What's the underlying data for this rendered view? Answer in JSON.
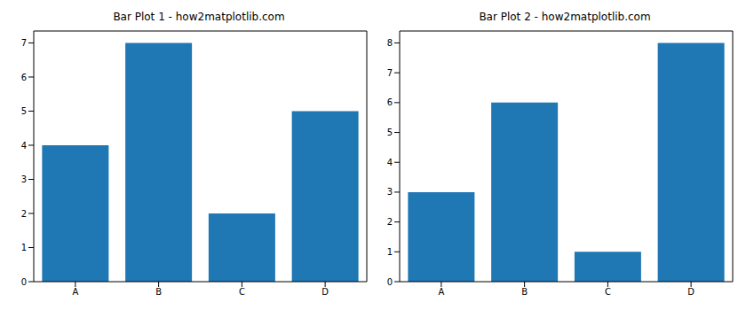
{
  "chart_data": [
    {
      "type": "bar",
      "title": "Bar Plot 1 - how2matplotlib.com",
      "categories": [
        "A",
        "B",
        "C",
        "D"
      ],
      "values": [
        4,
        7,
        2,
        5
      ],
      "color": "#1f77b4",
      "ylim": [
        0,
        7.35
      ],
      "yticks": [
        0,
        1,
        2,
        3,
        4,
        5,
        6,
        7
      ],
      "grid": false
    },
    {
      "type": "bar",
      "title": "Bar Plot 2 - how2matplotlib.com",
      "categories": [
        "A",
        "B",
        "C",
        "D"
      ],
      "values": [
        3,
        6,
        1,
        8
      ],
      "color": "#1f77b4",
      "ylim": [
        0,
        8.4
      ],
      "yticks": [
        0,
        1,
        2,
        3,
        4,
        5,
        6,
        7,
        8
      ],
      "grid": false
    }
  ]
}
